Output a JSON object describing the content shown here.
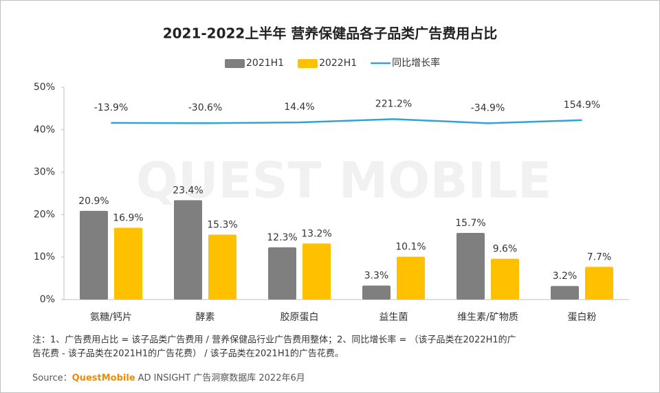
{
  "chart_data": {
    "type": "bar",
    "title": "2021-2022上半年 营养保健品各子品类广告费用占比",
    "categories": [
      "氨糖/钙片",
      "酵素",
      "胶原蛋白",
      "益生菌",
      "维生素/矿物质",
      "蛋白粉"
    ],
    "series": [
      {
        "name": "2021H1",
        "type": "bar",
        "color": "#7f7f7f",
        "values": [
          20.9,
          23.4,
          12.3,
          3.3,
          15.7,
          3.2
        ],
        "value_labels": [
          "20.9%",
          "23.4%",
          "12.3%",
          "3.3%",
          "15.7%",
          "3.2%"
        ]
      },
      {
        "name": "2022H1",
        "type": "bar",
        "color": "#ffc000",
        "values": [
          16.9,
          15.3,
          13.2,
          10.1,
          9.6,
          7.7
        ],
        "value_labels": [
          "16.9%",
          "15.3%",
          "13.2%",
          "10.1%",
          "9.6%",
          "7.7%"
        ]
      },
      {
        "name": "同比增长率",
        "type": "line",
        "axis": "y2",
        "color": "#2ea3d8",
        "values": [
          -13.9,
          -30.6,
          14.4,
          221.2,
          -34.9,
          154.9
        ],
        "value_labels": [
          "-13.9%",
          "-30.6%",
          "14.4%",
          "221.2%",
          "-34.9%",
          "154.9%"
        ]
      }
    ],
    "ylim": [
      0,
      50
    ],
    "yticks": [
      {
        "value": 0,
        "label": "0%"
      },
      {
        "value": 10,
        "label": "10%"
      },
      {
        "value": 20,
        "label": "20%"
      },
      {
        "value": 30,
        "label": "30%"
      },
      {
        "value": 40,
        "label": "40%"
      },
      {
        "value": 50,
        "label": "50%"
      }
    ],
    "y2lim": [
      -11000,
      2200
    ],
    "grid": false,
    "watermark": "QUEST MOBILE",
    "note": [
      "注：1、广告费用占比 = 该子品类广告费用 / 营养保健品行业广告费用整体；2、同比增长率 = （该子品类在2022H1的广",
      "告花费 - 该子品类在2021H1的广告花费） / 该子品类在2021H1的广告花费。"
    ],
    "source_label": "Source：",
    "source_brand": "QuestMobile",
    "source_text": "AD INSIGHT 广告洞察数据库 2022年6月"
  }
}
